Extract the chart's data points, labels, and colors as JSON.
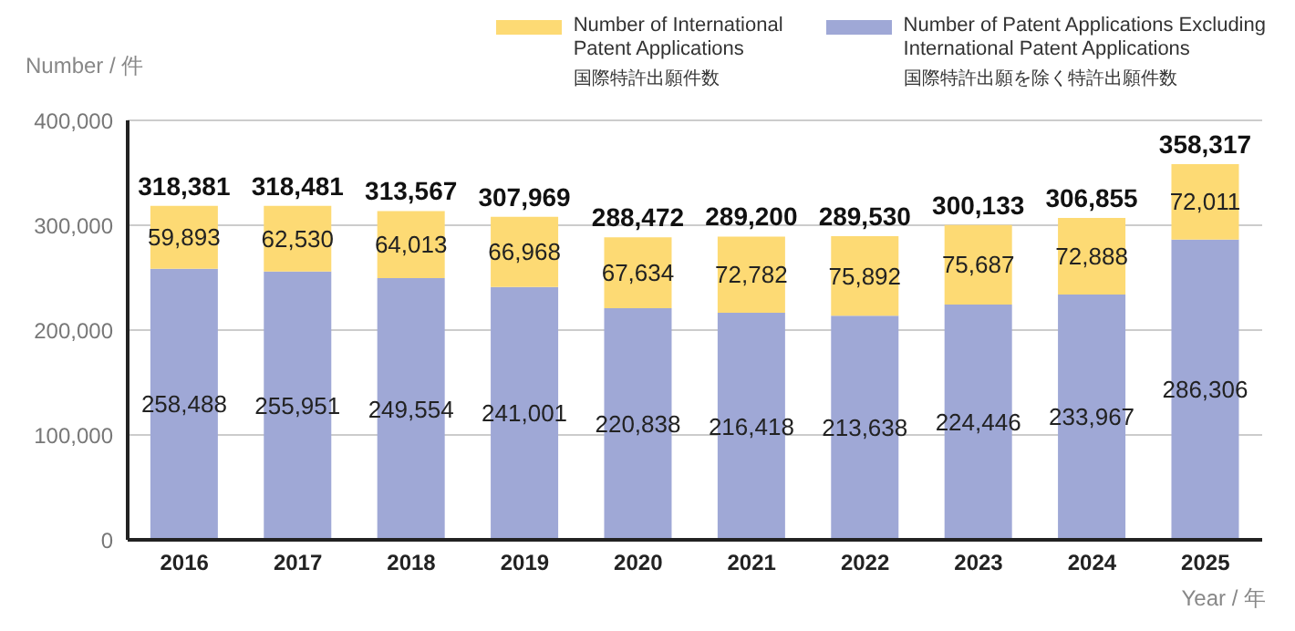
{
  "chart_data": {
    "type": "bar",
    "stacked": true,
    "ylabel": "Number / 件",
    "xlabel": "Year / 年",
    "categories": [
      "2016",
      "2017",
      "2018",
      "2019",
      "2020",
      "2021",
      "2022",
      "2023",
      "2024",
      "2025"
    ],
    "series": [
      {
        "name": "Number of Patent Applications Excluding\nInternational Patent Applications\n国際特許出願を除く特許出願件数",
        "color": "#9fa8d6",
        "values": [
          258488,
          255951,
          249554,
          241001,
          220838,
          216418,
          213638,
          224446,
          233967,
          286306
        ],
        "value_labels": [
          "258,488",
          "255,951",
          "249,554",
          "241,001",
          "220,838",
          "216,418",
          "213,638",
          "224,446",
          "233,967",
          "286,306"
        ]
      },
      {
        "name": "Number of International\nPatent Applications\n国際特許出願件数",
        "color": "#fdda74",
        "values": [
          59893,
          62530,
          64013,
          66968,
          67634,
          72782,
          75892,
          75687,
          72888,
          72011
        ],
        "value_labels": [
          "59,893",
          "62,530",
          "64,013",
          "66,968",
          "67,634",
          "72,782",
          "75,892",
          "75,687",
          "72,888",
          "72,011"
        ]
      }
    ],
    "totals": [
      "318,381",
      "318,481",
      "313,567",
      "307,969",
      "288,472",
      "289,200",
      "289,530",
      "300,133",
      "306,855",
      "358,317"
    ],
    "ylim": [
      0,
      400000
    ],
    "yticks": [
      0,
      {
        "value": 100000,
        "label": "100,000"
      },
      {
        "value": 200000,
        "label": "200,000"
      },
      {
        "value": 300000,
        "label": "300,000"
      },
      {
        "value": 400000,
        "label": "400,000"
      }
    ],
    "grid": "y",
    "legend": "top right"
  }
}
